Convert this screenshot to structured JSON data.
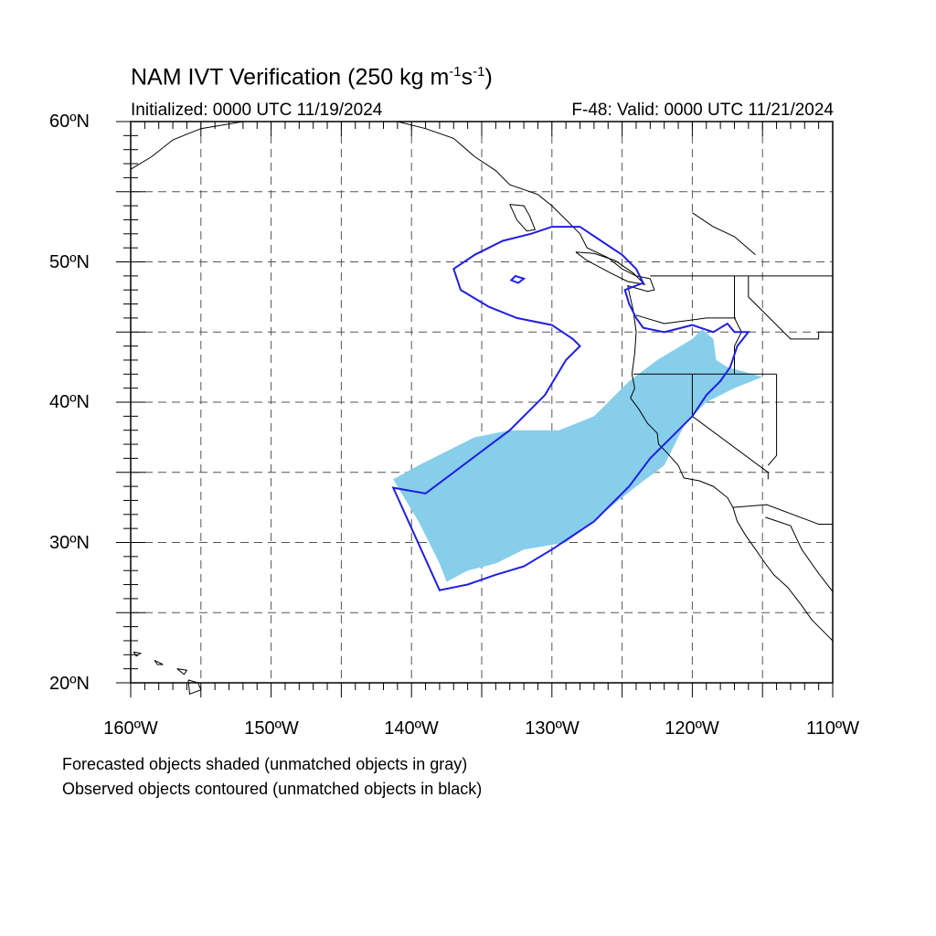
{
  "title": {
    "main": "NAM IVT Verification (250 kg m",
    "exp1": "-1",
    "mid": "s",
    "exp2": "-1",
    "end": ")"
  },
  "subtitle_left": "Initialized: 0000 UTC 11/19/2024",
  "subtitle_right": "F-48: Valid: 0000 UTC 11/21/2024",
  "axes": {
    "lon_range": [
      -160,
      -110
    ],
    "lat_range": [
      20,
      60
    ],
    "lat_labels": [
      "60ºN",
      "50ºN",
      "40ºN",
      "30ºN",
      "20ºN"
    ],
    "lon_labels": [
      "160ºW",
      "150ºW",
      "140ºW",
      "130ºW",
      "120ºW",
      "110ºW"
    ],
    "grid": "dashed"
  },
  "legend_notes": [
    "Forecasted objects shaded (unmatched objects in gray)",
    "Observed objects contoured (unmatched objects in black)"
  ],
  "colors": {
    "forecast_fill": "#87ceeb",
    "observed_contour": "#1f1fe0",
    "coastline": "#000000",
    "grid": "#555555"
  },
  "forecast_object": [
    [
      -141.3,
      34.5
    ],
    [
      -139.5,
      35.5
    ],
    [
      -135.5,
      37.5
    ],
    [
      -133.0,
      38.0
    ],
    [
      -129.5,
      38.0
    ],
    [
      -127.0,
      39.0
    ],
    [
      -124.5,
      41.5
    ],
    [
      -122.5,
      43.0
    ],
    [
      -120.0,
      44.5
    ],
    [
      -119.3,
      45.2
    ],
    [
      -118.5,
      44.5
    ],
    [
      -118.3,
      43.0
    ],
    [
      -117.5,
      42.5
    ],
    [
      -115.0,
      41.8
    ],
    [
      -117.0,
      41.0
    ],
    [
      -119.0,
      40.0
    ],
    [
      -120.5,
      38.5
    ],
    [
      -122.0,
      35.5
    ],
    [
      -124.0,
      34.0
    ],
    [
      -126.5,
      32.0
    ],
    [
      -129.0,
      30.0
    ],
    [
      -132.0,
      29.5
    ],
    [
      -134.0,
      28.5
    ],
    [
      -136.0,
      28.0
    ],
    [
      -137.5,
      27.2
    ],
    [
      -138.0,
      28.5
    ],
    [
      -139.5,
      31.5
    ],
    [
      -141.0,
      34.0
    ]
  ],
  "observed_object": [
    [
      -141.3,
      33.9
    ],
    [
      -138.0,
      26.6
    ],
    [
      -136.0,
      27.0
    ],
    [
      -134.0,
      27.7
    ],
    [
      -132.0,
      28.3
    ],
    [
      -130.0,
      29.5
    ],
    [
      -127.0,
      31.5
    ],
    [
      -124.5,
      34.0
    ],
    [
      -123.0,
      36.0
    ],
    [
      -121.5,
      37.5
    ],
    [
      -120.0,
      39.0
    ],
    [
      -119.0,
      40.5
    ],
    [
      -118.0,
      41.5
    ],
    [
      -117.3,
      42.5
    ],
    [
      -116.8,
      44.0
    ],
    [
      -116.0,
      45.0
    ],
    [
      -117.0,
      45.0
    ],
    [
      -117.5,
      45.6
    ],
    [
      -118.5,
      45.0
    ],
    [
      -120.0,
      45.5
    ],
    [
      -122.0,
      45.0
    ],
    [
      -123.5,
      45.3
    ],
    [
      -124.0,
      46.0
    ],
    [
      -124.5,
      47.0
    ],
    [
      -124.8,
      48.0
    ],
    [
      -123.5,
      48.5
    ],
    [
      -124.0,
      49.5
    ],
    [
      -125.0,
      50.5
    ],
    [
      -126.5,
      51.5
    ],
    [
      -128.0,
      52.5
    ],
    [
      -130.0,
      52.5
    ],
    [
      -131.5,
      52.0
    ],
    [
      -133.5,
      51.5
    ],
    [
      -135.5,
      50.5
    ],
    [
      -137.0,
      49.5
    ],
    [
      -136.5,
      48.0
    ],
    [
      -134.5,
      46.8
    ],
    [
      -132.5,
      46.0
    ],
    [
      -130.0,
      45.5
    ],
    [
      -128.5,
      44.5
    ],
    [
      -128.0,
      44.0
    ],
    [
      -128.5,
      43.5
    ],
    [
      -129.0,
      43.0
    ],
    [
      -130.5,
      40.5
    ],
    [
      -133.0,
      38.0
    ],
    [
      -135.0,
      36.5
    ],
    [
      -137.0,
      35.0
    ],
    [
      -139.0,
      33.5
    ],
    [
      -141.3,
      33.9
    ]
  ],
  "observed_hole": [
    [
      -132.6,
      49.0
    ],
    [
      -132.0,
      48.8
    ],
    [
      -132.4,
      48.5
    ],
    [
      -132.9,
      48.7
    ],
    [
      -132.6,
      49.0
    ]
  ]
}
